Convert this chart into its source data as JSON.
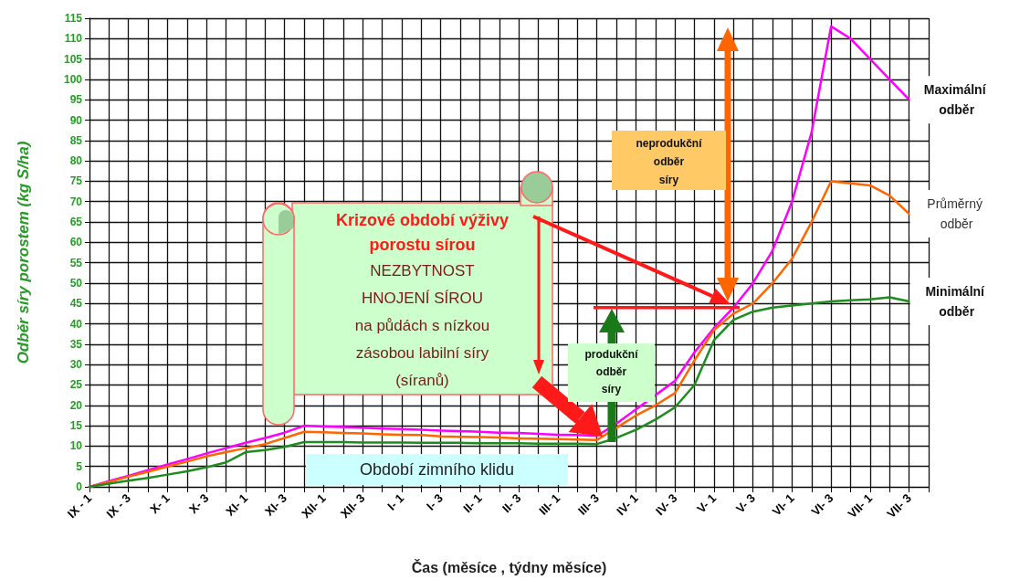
{
  "chart_data": {
    "type": "line",
    "xlabel": "Čas (měsíce , týdny měsíce)",
    "ylabel": "Odběr síry porostem (kg S/ha)",
    "categories": [
      "IX - 1",
      null,
      "IX - 3",
      null,
      "X- 1",
      null,
      "X- 3",
      null,
      "XI- 1",
      null,
      "XI- 3",
      null,
      "XII- 1",
      null,
      "XII- 3",
      null,
      "I- 1",
      null,
      "I- 3",
      null,
      "II- 1",
      null,
      "II- 3",
      null,
      "III- 1",
      null,
      "III- 3",
      null,
      "IV- 1",
      null,
      "IV- 3",
      null,
      "V- 1",
      null,
      "V- 3",
      null,
      "VI- 1",
      null,
      "VI- 3",
      null,
      "VII- 1",
      null,
      "VII- 3",
      null
    ],
    "series": [
      {
        "name": "Maximální odběr",
        "color": "#ff00ff",
        "values": [
          0,
          1.4,
          2.7,
          4.1,
          5.5,
          6.8,
          8.2,
          9.5,
          10.8,
          12,
          13.3,
          15,
          14.8,
          14.7,
          14.5,
          14.3,
          14.2,
          14,
          13.8,
          13.7,
          13.5,
          13.3,
          13.2,
          13,
          12.8,
          12.7,
          12.5,
          15.5,
          19,
          22.5,
          26,
          33,
          39,
          44,
          50,
          58,
          70,
          87,
          113,
          110,
          105,
          100,
          95,
          null
        ]
      },
      {
        "name": "Průměrný odběr",
        "color": "#ff6600",
        "values": [
          0,
          1.2,
          2.5,
          3.7,
          5,
          6.2,
          7.5,
          8.5,
          9.5,
          10.5,
          12,
          13.5,
          13.4,
          13.2,
          13.1,
          12.9,
          12.8,
          12.7,
          12.4,
          12.3,
          12.2,
          12.1,
          11.9,
          11.8,
          11.7,
          11.6,
          11.5,
          14.5,
          17.5,
          20,
          23,
          31,
          38.5,
          42.5,
          45,
          50,
          56,
          65,
          75,
          74.5,
          74,
          71.5,
          67,
          null
        ]
      },
      {
        "name": "Minimální odběr",
        "color": "#1e8c1e",
        "values": [
          0,
          0.8,
          1.5,
          2.2,
          3,
          3.8,
          4.8,
          6,
          8.5,
          9,
          9.8,
          11,
          11,
          11,
          10.9,
          10.9,
          10.9,
          10.8,
          10.8,
          10.8,
          10.7,
          10.7,
          10.7,
          10.6,
          10.6,
          10.6,
          10.5,
          12,
          14,
          16.5,
          19.5,
          25,
          36,
          41,
          43,
          44,
          44.5,
          45,
          45.5,
          45.8,
          46,
          46.5,
          45.5,
          null
        ]
      }
    ],
    "ylim": [
      0,
      115
    ],
    "yticks": [
      0,
      5,
      10,
      15,
      20,
      25,
      30,
      35,
      40,
      45,
      50,
      55,
      60,
      65,
      70,
      75,
      80,
      85,
      90,
      95,
      100,
      105,
      110,
      115
    ],
    "grid": true,
    "legend": false,
    "marker": "none",
    "line_style": "solid",
    "annotations": [
      "Krizové období výživy porostu sírou",
      "NEZBYTNOST HNOJENÍ SÍROU na půdách s nízkou zásobou labilní síry (síranů)",
      "neprodukční odběr síry",
      "produkční odběr síry",
      "Období zimního klidu"
    ]
  }
}
